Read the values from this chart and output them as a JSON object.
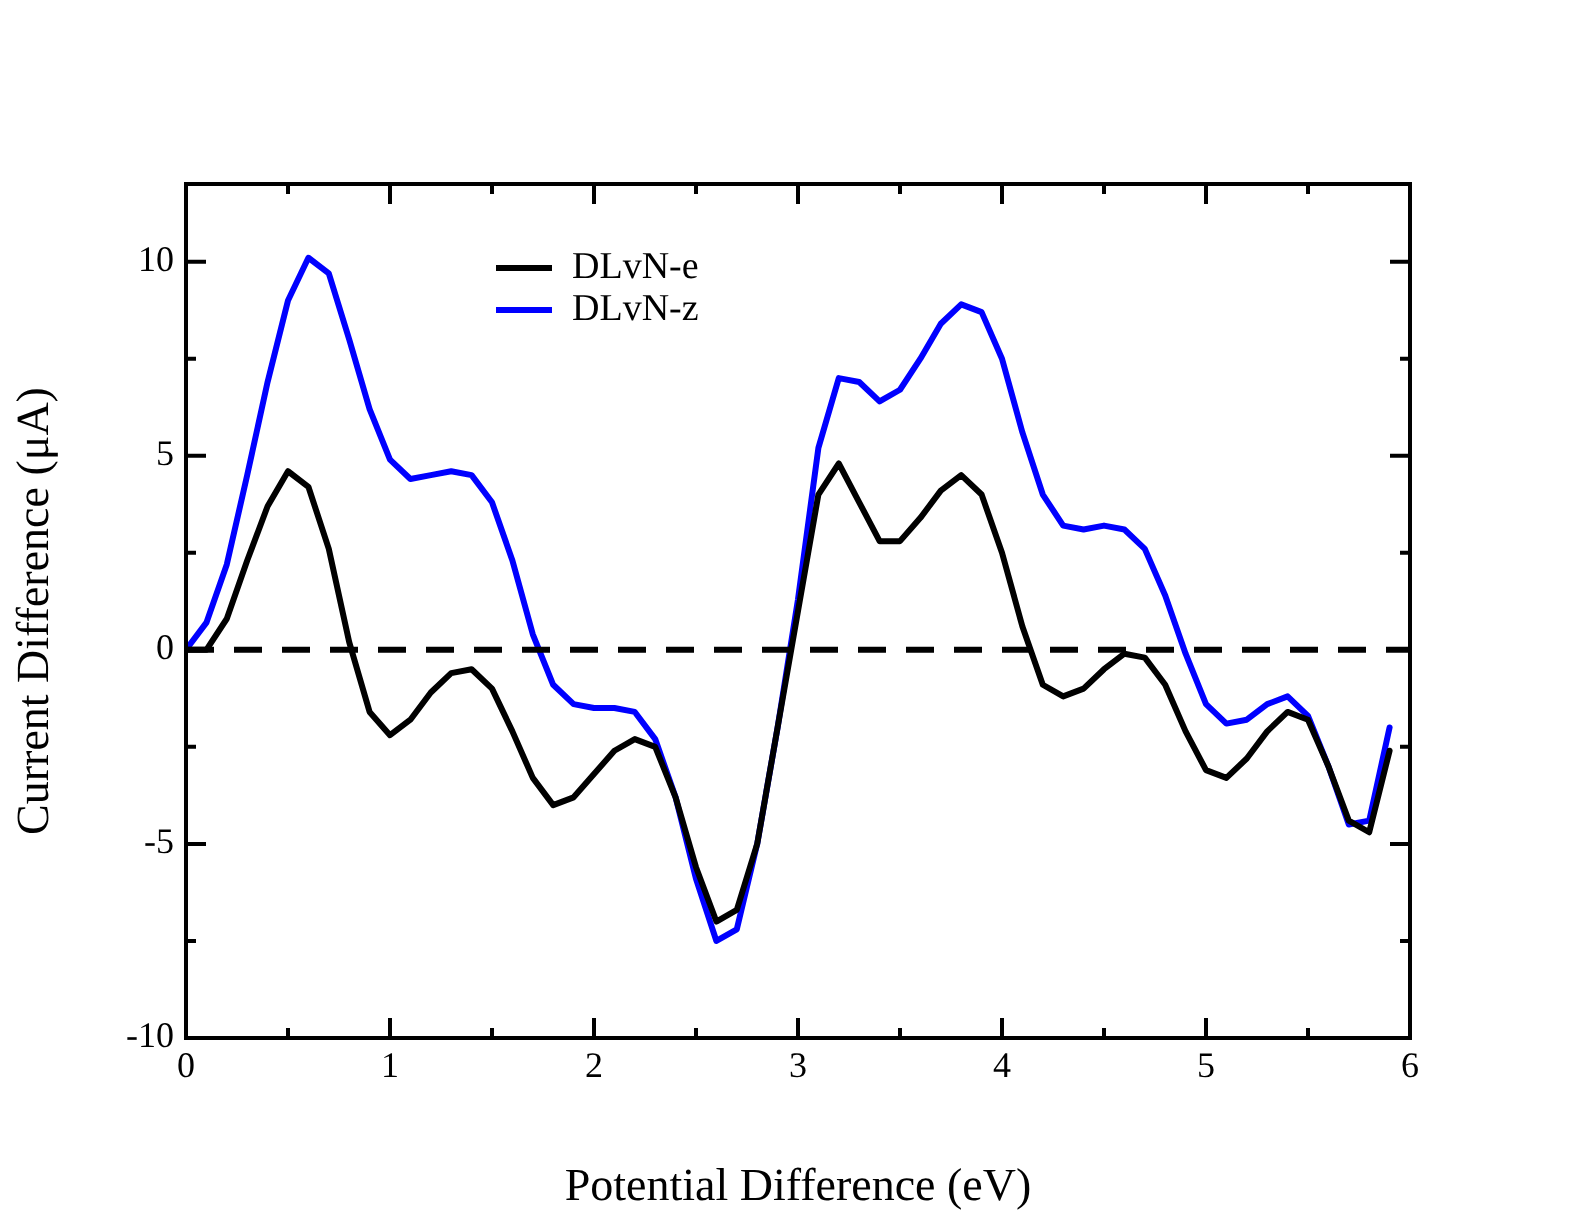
{
  "chart_data": {
    "type": "line",
    "xlabel": "Potential Difference (eV)",
    "ylabel": "Current Difference (μA)",
    "x": [
      0,
      0.1,
      0.2,
      0.3,
      0.4,
      0.5,
      0.6,
      0.7,
      0.8,
      0.9,
      1.0,
      1.1,
      1.2,
      1.3,
      1.4,
      1.5,
      1.6,
      1.7,
      1.8,
      1.9,
      2.0,
      2.1,
      2.2,
      2.3,
      2.4,
      2.5,
      2.6,
      2.7,
      2.8,
      2.9,
      3.0,
      3.1,
      3.2,
      3.3,
      3.4,
      3.5,
      3.6,
      3.7,
      3.8,
      3.9,
      4.0,
      4.1,
      4.2,
      4.3,
      4.4,
      4.5,
      4.6,
      4.7,
      4.8,
      4.9,
      5.0,
      5.1,
      5.2,
      5.3,
      5.4,
      5.5,
      5.6,
      5.7,
      5.8,
      5.9
    ],
    "series": [
      {
        "name": "DLvN-e",
        "color": "#000000",
        "values": [
          0,
          0,
          0.8,
          2.3,
          3.7,
          4.6,
          4.2,
          2.6,
          0.2,
          -1.6,
          -2.2,
          -1.8,
          -1.1,
          -0.6,
          -0.5,
          -1.0,
          -2.1,
          -3.3,
          -4.0,
          -3.8,
          -3.2,
          -2.6,
          -2.3,
          -2.5,
          -3.8,
          -5.6,
          -7.0,
          -6.7,
          -5.0,
          -2.0,
          1.0,
          4.0,
          4.8,
          3.8,
          2.8,
          2.8,
          3.4,
          4.1,
          4.5,
          4.0,
          2.5,
          0.6,
          -0.9,
          -1.2,
          -1.0,
          -0.5,
          -0.1,
          -0.2,
          -0.9,
          -2.1,
          -3.1,
          -3.3,
          -2.8,
          -2.1,
          -1.6,
          -1.8,
          -3.0,
          -4.4,
          -4.7,
          -2.6
        ]
      },
      {
        "name": "DLvN-z",
        "color": "#0000ff",
        "values": [
          0,
          0.7,
          2.2,
          4.5,
          6.9,
          9.0,
          10.1,
          9.7,
          8.0,
          6.2,
          4.9,
          4.4,
          4.5,
          4.6,
          4.5,
          3.8,
          2.3,
          0.4,
          -0.9,
          -1.4,
          -1.5,
          -1.5,
          -1.6,
          -2.3,
          -3.8,
          -5.9,
          -7.5,
          -7.2,
          -5.0,
          -2.0,
          1.3,
          5.2,
          7.0,
          6.9,
          6.4,
          6.7,
          7.5,
          8.4,
          8.9,
          8.7,
          7.5,
          5.6,
          4.0,
          3.2,
          3.1,
          3.2,
          3.1,
          2.6,
          1.4,
          -0.1,
          -1.4,
          -1.9,
          -1.8,
          -1.4,
          -1.2,
          -1.7,
          -3.0,
          -4.5,
          -4.4,
          -2.0
        ]
      }
    ],
    "xlim": [
      0,
      6
    ],
    "ylim": [
      -10,
      12
    ],
    "xticks": [
      0,
      {
        "value": 0.5,
        "label": null
      },
      1,
      {
        "value": 1.5,
        "label": null
      },
      2,
      {
        "value": 2.5,
        "label": null
      },
      3,
      {
        "value": 3.5,
        "label": null
      },
      4,
      {
        "value": 4.5,
        "label": null
      },
      5,
      {
        "value": 5.5,
        "label": null
      },
      6
    ],
    "yticks": [
      -10,
      {
        "value": -7.5,
        "label": null
      },
      -5,
      {
        "value": -2.5,
        "label": null
      },
      0,
      {
        "value": 2.5,
        "label": null
      },
      5,
      {
        "value": 7.5,
        "label": null
      },
      10
    ],
    "ref_lines": [
      {
        "axis": "y",
        "value": 0,
        "color": "#000000",
        "line_style": "dashed"
      }
    ],
    "legend": "top left",
    "grid": false,
    "marker": "none",
    "line_style": "solid"
  }
}
